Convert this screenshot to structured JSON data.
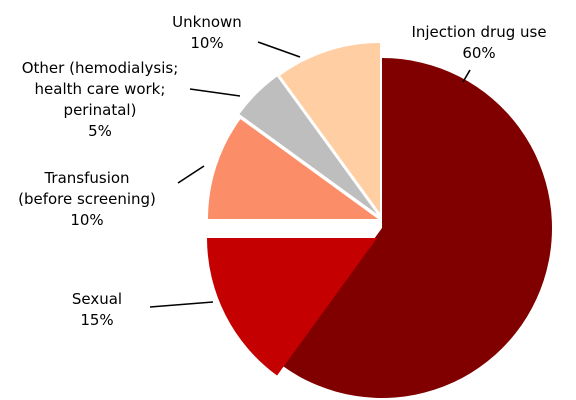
{
  "chart_data": {
    "type": "pie",
    "slices": [
      {
        "label_lines": [
          "Injection drug use"
        ],
        "value_label": "60%",
        "value": 60,
        "color": "#800000"
      },
      {
        "label_lines": [
          "Sexual"
        ],
        "value_label": "15%",
        "value": 15,
        "color": "#c40000"
      },
      {
        "label_lines": [
          "Transfusion",
          "(before screening)"
        ],
        "value_label": "10%",
        "value": 10,
        "color": "#fb8e69"
      },
      {
        "label_lines": [
          "Other (hemodialysis;",
          "health care work;",
          "perinatal)"
        ],
        "value_label": "5%",
        "value": 5,
        "color": "#bebebe"
      },
      {
        "label_lines": [
          "Unknown"
        ],
        "value_label": "10%",
        "value": 10,
        "color": "#ffcfa3"
      }
    ],
    "exploded": true,
    "legend": "none"
  }
}
